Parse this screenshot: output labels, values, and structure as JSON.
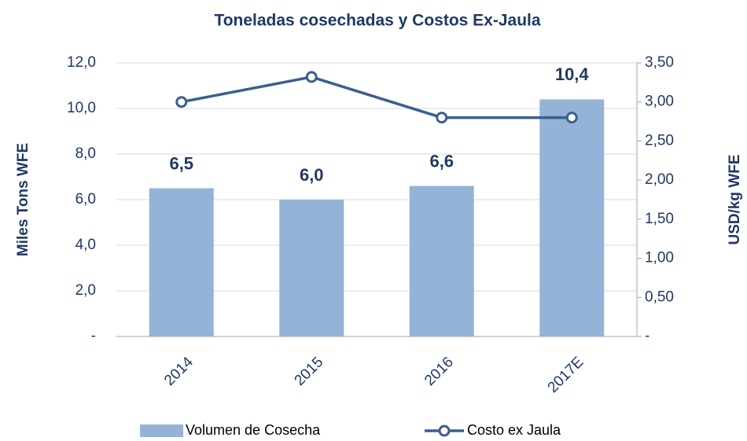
{
  "chart_data": {
    "type": "bar",
    "title": "Toneladas cosechadas y Costos Ex-Jaula",
    "y_label": "Miles Tons WFE",
    "y2_label": "USD/kg WFE",
    "categories": [
      "2014",
      "2015",
      "2016",
      "2017E"
    ],
    "series": [
      {
        "name": "Volumen de Cosecha",
        "type": "bar",
        "color": "#95b3d7",
        "values": [
          6.5,
          6.0,
          6.6,
          10.4
        ],
        "value_labels": [
          "6,5",
          "6,0",
          "6,6",
          "10,4"
        ]
      },
      {
        "name": "Costo ex Jaula",
        "type": "line",
        "axis": "y2",
        "color": "#3a5f8f",
        "values": [
          3.0,
          3.32,
          2.8,
          2.8
        ]
      }
    ],
    "ylim": [
      0,
      12
    ],
    "yticks": [
      {
        "value": 0,
        "label": "-"
      },
      {
        "value": 2,
        "label": "2,0"
      },
      {
        "value": 4,
        "label": "4,0"
      },
      {
        "value": 6,
        "label": "6,0"
      },
      {
        "value": 8,
        "label": "8,0"
      },
      {
        "value": 10,
        "label": "10,0"
      },
      {
        "value": 12,
        "label": "12,0"
      }
    ],
    "y2lim": [
      0,
      3.5
    ],
    "y2ticks": [
      {
        "value": 0,
        "label": "-"
      },
      {
        "value": 0.5,
        "label": "0,50"
      },
      {
        "value": 1,
        "label": "1,00"
      },
      {
        "value": 1.5,
        "label": "1,50"
      },
      {
        "value": 2,
        "label": "2,00"
      },
      {
        "value": 2.5,
        "label": "2,50"
      },
      {
        "value": 3,
        "label": "3,00"
      },
      {
        "value": 3.5,
        "label": "3,50"
      }
    ],
    "grid": true,
    "legend": "bottom"
  }
}
